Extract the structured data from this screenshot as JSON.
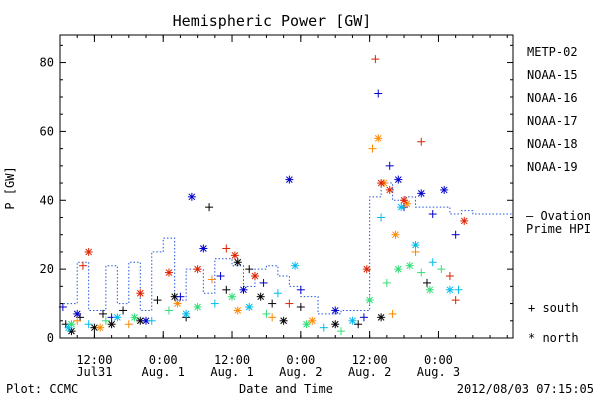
{
  "chart_data": {
    "type": "scatter",
    "title": "Hemispheric Power [GW]",
    "ylabel": "P [GW]",
    "xlabel": "Date and Time",
    "ylim": [
      0,
      88
    ],
    "xlim": [
      "2012-07-31T06:00",
      "2012-08-03T13:00"
    ],
    "yticks": [
      0,
      20,
      40,
      60,
      80
    ],
    "xticks": [
      {
        "line1": "12:00",
        "line2": "Jul31"
      },
      {
        "line1": "0:00",
        "line2": "Aug. 1"
      },
      {
        "line1": "12:00",
        "line2": "Aug. 1"
      },
      {
        "line1": "0:00",
        "line2": "Aug. 2"
      },
      {
        "line1": "12:00",
        "line2": "Aug. 2"
      },
      {
        "line1": "0:00",
        "line2": "Aug. 3"
      }
    ],
    "legend_placement": "right",
    "markers": {
      "plus": "south",
      "star": "north"
    },
    "marker_legend": [
      {
        "symbol": "+",
        "label": "south"
      },
      {
        "symbol": "*",
        "label": "north"
      }
    ],
    "series": [
      {
        "name": "METP-02",
        "color": "#000000",
        "points": [
          [
            "2012-07-31T07:00",
            4,
            "+"
          ],
          [
            "2012-07-31T08:00",
            2,
            "*"
          ],
          [
            "2012-07-31T09:30",
            6,
            "+"
          ],
          [
            "2012-07-31T12:00",
            3,
            "*"
          ],
          [
            "2012-07-31T13:30",
            7,
            "+"
          ],
          [
            "2012-07-31T15:00",
            4,
            "*"
          ],
          [
            "2012-07-31T17:00",
            8,
            "+"
          ],
          [
            "2012-07-31T20:00",
            5,
            "*"
          ],
          [
            "2012-07-31T23:00",
            11,
            "+"
          ],
          [
            "2012-08-01T02:00",
            12,
            "*"
          ],
          [
            "2012-08-01T04:00",
            6,
            "+"
          ],
          [
            "2012-08-01T08:00",
            38,
            "+"
          ],
          [
            "2012-08-01T11:00",
            14,
            "+"
          ],
          [
            "2012-08-01T13:00",
            22,
            "*"
          ],
          [
            "2012-08-01T15:00",
            20,
            "+"
          ],
          [
            "2012-08-01T17:00",
            12,
            "*"
          ],
          [
            "2012-08-01T19:00",
            10,
            "+"
          ],
          [
            "2012-08-01T21:00",
            5,
            "*"
          ],
          [
            "2012-08-02T00:00",
            9,
            "+"
          ],
          [
            "2012-08-02T06:00",
            4,
            "*"
          ],
          [
            "2012-08-02T10:00",
            4,
            "+"
          ],
          [
            "2012-08-02T14:00",
            6,
            "*"
          ],
          [
            "2012-08-02T22:00",
            16,
            "+"
          ]
        ]
      },
      {
        "name": "NOAA-15",
        "color": "#0000cc",
        "points": [
          [
            "2012-07-31T06:30",
            9,
            "+"
          ],
          [
            "2012-07-31T09:00",
            7,
            "*"
          ],
          [
            "2012-07-31T15:00",
            6,
            "+"
          ],
          [
            "2012-07-31T21:00",
            5,
            "*"
          ],
          [
            "2012-08-01T03:00",
            12,
            "+"
          ],
          [
            "2012-08-01T05:00",
            41,
            "*"
          ],
          [
            "2012-08-01T07:00",
            26,
            "*"
          ],
          [
            "2012-08-01T10:00",
            18,
            "+"
          ],
          [
            "2012-08-01T14:00",
            14,
            "*"
          ],
          [
            "2012-08-01T17:30",
            16,
            "+"
          ],
          [
            "2012-08-01T22:00",
            46,
            "*"
          ],
          [
            "2012-08-02T00:00",
            14,
            "+"
          ],
          [
            "2012-08-02T06:00",
            8,
            "*"
          ],
          [
            "2012-08-02T11:00",
            6,
            "+"
          ],
          [
            "2012-08-02T13:30",
            71,
            "+"
          ],
          [
            "2012-08-02T15:30",
            50,
            "+"
          ],
          [
            "2012-08-02T17:00",
            46,
            "*"
          ],
          [
            "2012-08-02T18:00",
            38,
            "+"
          ],
          [
            "2012-08-02T21:00",
            42,
            "*"
          ],
          [
            "2012-08-02T23:00",
            36,
            "+"
          ],
          [
            "2012-08-03T01:00",
            43,
            "*"
          ],
          [
            "2012-08-03T03:00",
            30,
            "+"
          ]
        ]
      },
      {
        "name": "NOAA-16",
        "color": "#00bbee",
        "points": [
          [
            "2012-07-31T07:30",
            3,
            "*"
          ],
          [
            "2012-07-31T11:00",
            4,
            "+"
          ],
          [
            "2012-07-31T16:00",
            6,
            "*"
          ],
          [
            "2012-07-31T22:00",
            5,
            "+"
          ],
          [
            "2012-08-01T04:00",
            7,
            "*"
          ],
          [
            "2012-08-01T09:00",
            10,
            "+"
          ],
          [
            "2012-08-01T15:00",
            9,
            "*"
          ],
          [
            "2012-08-01T20:00",
            13,
            "+"
          ],
          [
            "2012-08-01T23:00",
            21,
            "*"
          ],
          [
            "2012-08-02T04:00",
            3,
            "+"
          ],
          [
            "2012-08-02T09:00",
            5,
            "*"
          ],
          [
            "2012-08-02T14:00",
            35,
            "+"
          ],
          [
            "2012-08-02T17:30",
            38,
            "*"
          ],
          [
            "2012-08-02T20:00",
            27,
            "*"
          ],
          [
            "2012-08-02T23:00",
            22,
            "+"
          ],
          [
            "2012-08-03T02:00",
            14,
            "*"
          ],
          [
            "2012-08-03T03:30",
            14,
            "+"
          ]
        ]
      },
      {
        "name": "NOAA-17",
        "color": "#33dd77",
        "points": [
          [
            "2012-07-31T08:00",
            4,
            "*"
          ],
          [
            "2012-07-31T14:00",
            5,
            "+"
          ],
          [
            "2012-07-31T19:00",
            6,
            "*"
          ],
          [
            "2012-08-01T01:00",
            8,
            "+"
          ],
          [
            "2012-08-01T06:00",
            9,
            "*"
          ],
          [
            "2012-08-01T12:00",
            12,
            "*"
          ],
          [
            "2012-08-01T18:00",
            7,
            "+"
          ],
          [
            "2012-08-02T01:00",
            4,
            "*"
          ],
          [
            "2012-08-02T07:00",
            2,
            "+"
          ],
          [
            "2012-08-02T12:00",
            11,
            "*"
          ],
          [
            "2012-08-02T15:00",
            16,
            "+"
          ],
          [
            "2012-08-02T17:00",
            20,
            "*"
          ],
          [
            "2012-08-02T19:00",
            21,
            "*"
          ],
          [
            "2012-08-02T21:00",
            19,
            "+"
          ],
          [
            "2012-08-02T22:30",
            14,
            "*"
          ],
          [
            "2012-08-03T00:30",
            20,
            "+"
          ]
        ]
      },
      {
        "name": "NOAA-18",
        "color": "#ff8800",
        "points": [
          [
            "2012-07-31T09:00",
            5,
            "+"
          ],
          [
            "2012-07-31T13:00",
            3,
            "*"
          ],
          [
            "2012-07-31T18:00",
            4,
            "+"
          ],
          [
            "2012-08-01T02:30",
            10,
            "*"
          ],
          [
            "2012-08-01T08:30",
            17,
            "+"
          ],
          [
            "2012-08-01T13:00",
            8,
            "*"
          ],
          [
            "2012-08-01T19:00",
            6,
            "+"
          ],
          [
            "2012-08-02T02:00",
            5,
            "*"
          ],
          [
            "2012-08-02T12:30",
            55,
            "+"
          ],
          [
            "2012-08-02T13:30",
            58,
            "*"
          ],
          [
            "2012-08-02T14:30",
            45,
            "*"
          ],
          [
            "2012-08-02T16:30",
            30,
            "*"
          ],
          [
            "2012-08-02T18:30",
            39,
            "*"
          ],
          [
            "2012-08-02T20:00",
            25,
            "+"
          ],
          [
            "2012-08-02T16:00",
            7,
            "+"
          ]
        ]
      },
      {
        "name": "NOAA-19",
        "color": "#dd2200",
        "points": [
          [
            "2012-07-31T10:00",
            21,
            "+"
          ],
          [
            "2012-07-31T11:00",
            25,
            "*"
          ],
          [
            "2012-07-31T20:00",
            13,
            "*"
          ],
          [
            "2012-08-01T01:00",
            19,
            "*"
          ],
          [
            "2012-08-01T06:00",
            20,
            "*"
          ],
          [
            "2012-08-01T11:00",
            26,
            "+"
          ],
          [
            "2012-08-01T12:30",
            24,
            "*"
          ],
          [
            "2012-08-01T16:00",
            18,
            "*"
          ],
          [
            "2012-08-01T22:00",
            10,
            "+"
          ],
          [
            "2012-08-02T11:30",
            20,
            "*"
          ],
          [
            "2012-08-02T13:00",
            81,
            "+"
          ],
          [
            "2012-08-02T14:00",
            45,
            "*"
          ],
          [
            "2012-08-02T15:30",
            43,
            "*"
          ],
          [
            "2012-08-02T18:00",
            40,
            "*"
          ],
          [
            "2012-08-02T21:00",
            57,
            "+"
          ],
          [
            "2012-08-03T02:00",
            18,
            "+"
          ],
          [
            "2012-08-03T03:00",
            11,
            "+"
          ],
          [
            "2012-08-03T04:30",
            34,
            "*"
          ]
        ]
      }
    ],
    "ovation": {
      "name_line1": "— Ovation",
      "name_line2": "Prime HPI",
      "color": "#2255dd",
      "steps": [
        [
          "2012-07-31T06:00",
          10
        ],
        [
          "2012-07-31T09:00",
          22
        ],
        [
          "2012-07-31T11:00",
          8
        ],
        [
          "2012-07-31T14:00",
          21
        ],
        [
          "2012-07-31T16:00",
          10
        ],
        [
          "2012-07-31T18:00",
          22
        ],
        [
          "2012-07-31T20:00",
          8
        ],
        [
          "2012-07-31T22:00",
          25
        ],
        [
          "2012-08-01T00:00",
          29
        ],
        [
          "2012-08-01T02:00",
          11
        ],
        [
          "2012-08-01T04:00",
          20
        ],
        [
          "2012-08-01T07:00",
          13
        ],
        [
          "2012-08-01T09:00",
          23
        ],
        [
          "2012-08-01T12:00",
          21
        ],
        [
          "2012-08-01T14:00",
          15
        ],
        [
          "2012-08-01T16:00",
          20
        ],
        [
          "2012-08-01T18:00",
          21
        ],
        [
          "2012-08-01T20:00",
          18
        ],
        [
          "2012-08-01T22:00",
          15
        ],
        [
          "2012-08-02T00:00",
          12
        ],
        [
          "2012-08-02T03:00",
          7
        ],
        [
          "2012-08-02T07:00",
          8
        ],
        [
          "2012-08-02T10:00",
          8
        ],
        [
          "2012-08-02T12:00",
          41
        ],
        [
          "2012-08-02T14:00",
          45
        ],
        [
          "2012-08-02T16:00",
          40
        ],
        [
          "2012-08-02T18:00",
          41
        ],
        [
          "2012-08-02T20:00",
          38
        ],
        [
          "2012-08-02T22:00",
          38
        ],
        [
          "2012-08-03T00:00",
          38
        ],
        [
          "2012-08-03T02:00",
          36
        ],
        [
          "2012-08-03T04:00",
          37
        ],
        [
          "2012-08-03T06:00",
          36
        ]
      ]
    }
  },
  "footer": {
    "plot_credit": "Plot: CCMC",
    "timestamp": "2012/08/03 07:15:05"
  }
}
